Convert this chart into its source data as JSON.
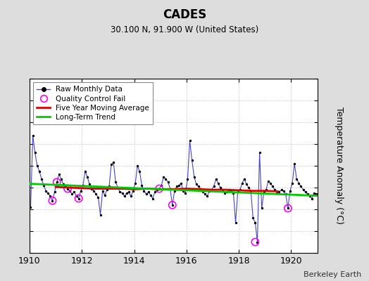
{
  "title": "CADES",
  "subtitle": "30.100 N, 91.900 W (United States)",
  "ylabel": "Temperature Anomaly (°C)",
  "credit": "Berkeley Earth",
  "xlim": [
    1910.0,
    1921.0
  ],
  "ylim": [
    -6,
    10
  ],
  "yticks": [
    -6,
    -4,
    -2,
    0,
    2,
    4,
    6,
    8,
    10
  ],
  "xticks": [
    1910,
    1912,
    1914,
    1916,
    1918,
    1920
  ],
  "bg_color": "#dddddd",
  "plot_bg_color": "#ffffff",
  "raw_color": "#4444cc",
  "marker_color": "#000000",
  "ma_color": "#dd0000",
  "trend_color": "#00cc00",
  "qc_color": "#ff00ff",
  "raw_x": [
    1910.042,
    1910.125,
    1910.208,
    1910.292,
    1910.375,
    1910.458,
    1910.542,
    1910.625,
    1910.708,
    1910.792,
    1910.875,
    1910.958,
    1911.042,
    1911.125,
    1911.208,
    1911.292,
    1911.375,
    1911.458,
    1911.542,
    1911.625,
    1911.708,
    1911.792,
    1911.875,
    1911.958,
    1912.042,
    1912.125,
    1912.208,
    1912.292,
    1912.375,
    1912.458,
    1912.542,
    1912.625,
    1912.708,
    1912.792,
    1912.875,
    1912.958,
    1913.042,
    1913.125,
    1913.208,
    1913.292,
    1913.375,
    1913.458,
    1913.542,
    1913.625,
    1913.708,
    1913.792,
    1913.875,
    1913.958,
    1914.042,
    1914.125,
    1914.208,
    1914.292,
    1914.375,
    1914.458,
    1914.542,
    1914.625,
    1914.708,
    1914.792,
    1914.875,
    1914.958,
    1915.042,
    1915.125,
    1915.208,
    1915.292,
    1915.375,
    1915.458,
    1915.542,
    1915.625,
    1915.708,
    1915.792,
    1915.875,
    1915.958,
    1916.042,
    1916.125,
    1916.208,
    1916.292,
    1916.375,
    1916.458,
    1916.542,
    1916.625,
    1916.708,
    1916.792,
    1916.875,
    1916.958,
    1917.042,
    1917.125,
    1917.208,
    1917.292,
    1917.375,
    1917.458,
    1917.542,
    1917.625,
    1917.708,
    1917.792,
    1917.875,
    1917.958,
    1918.042,
    1918.125,
    1918.208,
    1918.292,
    1918.375,
    1918.458,
    1918.542,
    1918.625,
    1918.708,
    1918.792,
    1918.875,
    1918.958,
    1919.042,
    1919.125,
    1919.208,
    1919.292,
    1919.375,
    1919.458,
    1919.542,
    1919.625,
    1919.708,
    1919.792,
    1919.875,
    1919.958,
    1920.042,
    1920.125,
    1920.208,
    1920.292,
    1920.375,
    1920.458,
    1920.542,
    1920.625,
    1920.708,
    1920.792,
    1920.875,
    1920.958
  ],
  "raw_y": [
    -1.8,
    4.8,
    3.2,
    2.0,
    1.5,
    0.8,
    0.2,
    -0.3,
    -0.5,
    -0.8,
    -1.2,
    -0.4,
    0.5,
    1.2,
    0.8,
    0.3,
    0.1,
    -0.1,
    -0.3,
    -0.6,
    -0.4,
    -0.8,
    -1.0,
    -0.3,
    0.2,
    1.5,
    1.0,
    0.3,
    -0.1,
    -0.3,
    -0.6,
    -0.9,
    -2.5,
    -0.3,
    -0.7,
    -0.2,
    0.1,
    2.1,
    2.3,
    0.5,
    0.0,
    -0.4,
    -0.5,
    -0.8,
    -0.5,
    -0.4,
    -0.8,
    -0.3,
    0.4,
    2.0,
    1.5,
    0.2,
    -0.3,
    -0.6,
    -0.4,
    -0.7,
    -1.0,
    -0.4,
    -0.2,
    -0.1,
    0.2,
    1.0,
    0.8,
    0.5,
    -0.1,
    -1.6,
    -0.3,
    0.1,
    0.2,
    0.4,
    -0.3,
    -0.5,
    0.8,
    4.3,
    2.5,
    1.0,
    0.3,
    0.1,
    -0.1,
    -0.4,
    -0.6,
    -0.8,
    -0.3,
    -0.2,
    0.1,
    0.8,
    0.4,
    0.0,
    -0.2,
    -0.5,
    -0.4,
    -0.2,
    -0.3,
    -0.5,
    -3.2,
    -0.4,
    -0.2,
    0.4,
    0.8,
    0.3,
    0.0,
    -0.3,
    -2.8,
    -3.2,
    -5.0,
    3.2,
    -1.9,
    -0.4,
    -0.2,
    0.6,
    0.4,
    0.1,
    -0.2,
    -0.5,
    -0.4,
    -0.2,
    -0.3,
    -0.6,
    -1.9,
    -0.3,
    0.4,
    2.2,
    0.8,
    0.4,
    0.1,
    -0.2,
    -0.4,
    -0.6,
    -0.8,
    -1.0,
    -0.5,
    -0.6
  ],
  "qc_x": [
    1910.875,
    1911.042,
    1911.458,
    1911.875,
    1914.958,
    1915.458,
    1918.625,
    1919.875
  ],
  "qc_y": [
    -1.2,
    0.5,
    -0.1,
    -1.0,
    -0.1,
    -1.6,
    -5.0,
    -1.9
  ],
  "ma_x": [
    1911.0,
    1911.5,
    1912.0,
    1912.5,
    1913.0,
    1913.5,
    1914.0,
    1914.5,
    1915.0,
    1915.5,
    1916.0,
    1916.5,
    1917.0,
    1917.5,
    1918.0,
    1918.5,
    1919.0,
    1919.5
  ],
  "ma_y": [
    0.05,
    0.0,
    -0.05,
    -0.1,
    -0.1,
    -0.1,
    -0.15,
    -0.1,
    -0.15,
    -0.15,
    -0.1,
    -0.15,
    -0.2,
    -0.2,
    -0.25,
    -0.3,
    -0.3,
    -0.35
  ],
  "trend_x": [
    1910.0,
    1921.0
  ],
  "trend_y": [
    0.35,
    -0.75
  ]
}
